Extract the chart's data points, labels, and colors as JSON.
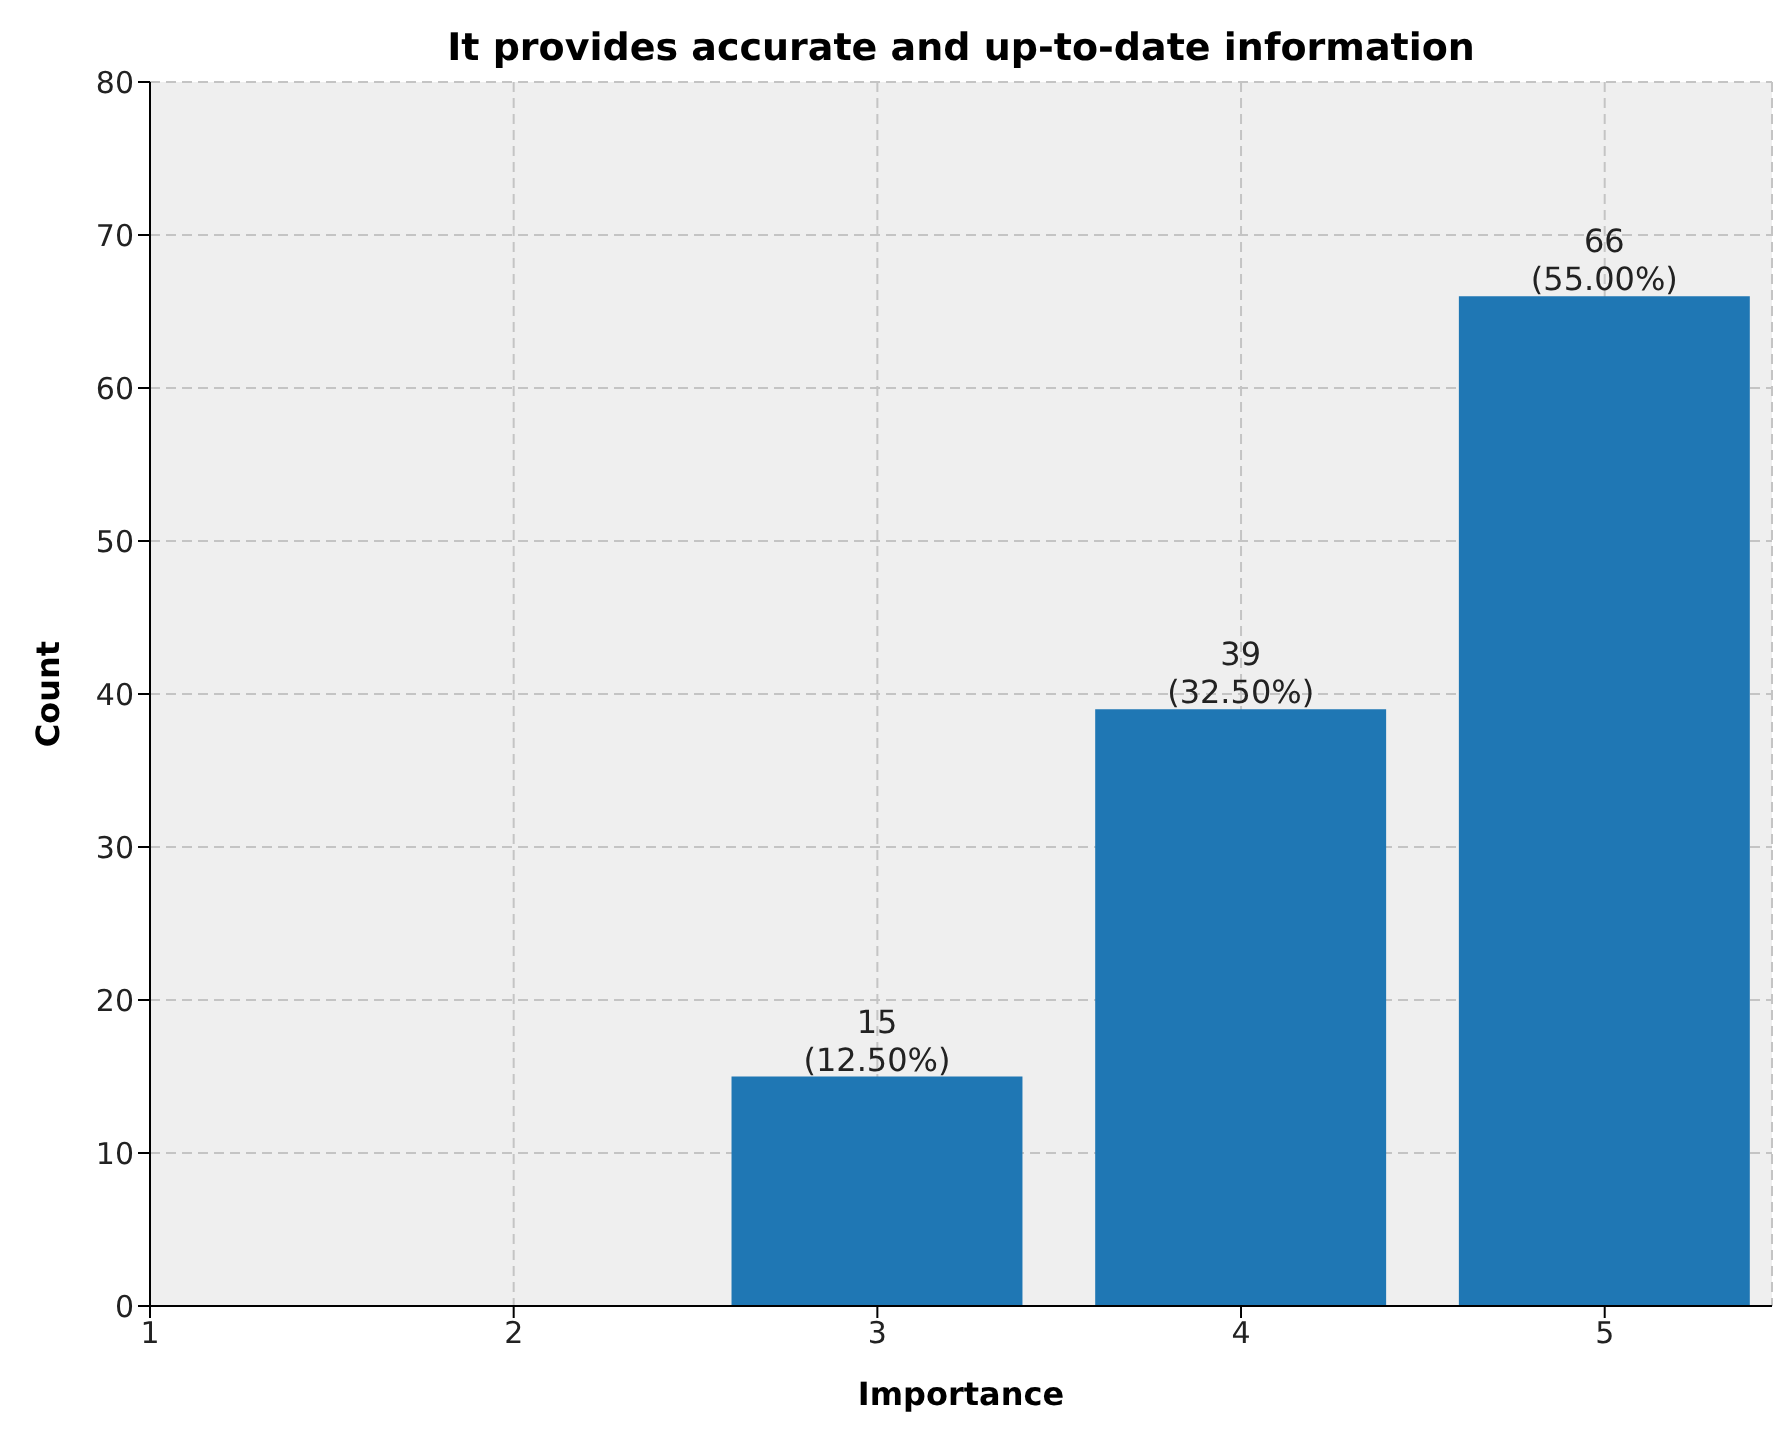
{
  "chart_data": {
    "type": "bar",
    "title": "It provides accurate and up-to-date information",
    "xlabel": "Importance",
    "ylabel": "Count",
    "x": [
      3,
      4,
      5
    ],
    "values": [
      15,
      39,
      66
    ],
    "color": "#1f77b4",
    "value_labels": [
      "15\n(12.50%)",
      "39\n(32.50%)",
      "66\n(55.00%)"
    ],
    "xlim": [
      1,
      5.46
    ],
    "xticks": [
      1,
      2,
      3,
      4,
      5
    ],
    "ylim": [
      0,
      80
    ],
    "yticks": [
      0,
      10,
      20,
      30,
      40,
      50,
      60,
      70,
      80
    ],
    "grid": true
  }
}
